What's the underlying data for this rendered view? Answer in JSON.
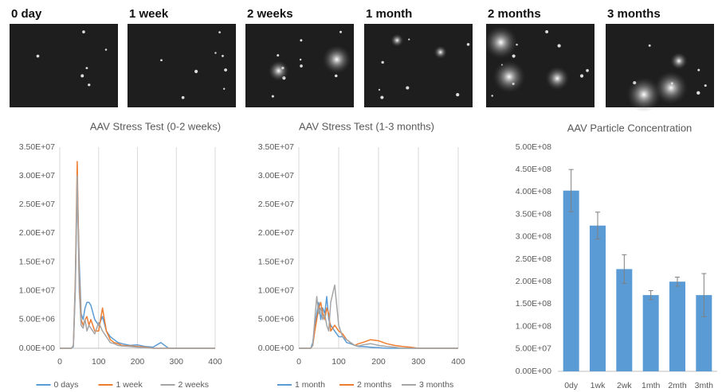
{
  "images": {
    "labels": [
      "0 day",
      "1 week",
      "2 weeks",
      "1 month",
      "2 months",
      "3 months"
    ]
  },
  "chart_data": [
    {
      "type": "line",
      "title": "AAV Stress Test (0-2 weeks)",
      "x": [
        0,
        20,
        30,
        35,
        40,
        45,
        50,
        55,
        60,
        65,
        70,
        75,
        80,
        90,
        100,
        110,
        120,
        130,
        140,
        150,
        160,
        180,
        200,
        220,
        240,
        260,
        280,
        300,
        350,
        400
      ],
      "series": [
        {
          "name": "0 days",
          "color": "#5b9bd5",
          "values": [
            0,
            0,
            0,
            300000,
            10000000,
            29000000,
            15000000,
            6000000,
            5000000,
            7000000,
            8000000,
            8000000,
            7500000,
            5000000,
            4000000,
            5500000,
            3000000,
            2000000,
            1500000,
            1000000,
            800000,
            500000,
            600000,
            300000,
            200000,
            1000000,
            0,
            0,
            0,
            0
          ]
        },
        {
          "name": "1 week",
          "color": "#ed7d31",
          "values": [
            0,
            0,
            0,
            500000,
            12000000,
            32500000,
            12000000,
            5000000,
            4000000,
            5000000,
            5500000,
            4000000,
            5000000,
            3000000,
            3000000,
            7000000,
            3000000,
            1500000,
            1000000,
            800000,
            500000,
            400000,
            300000,
            200000,
            0,
            0,
            0,
            0,
            0,
            0
          ]
        },
        {
          "name": "2 weeks",
          "color": "#a5a5a5",
          "values": [
            0,
            0,
            0,
            500000,
            11000000,
            30000000,
            10000000,
            4000000,
            3500000,
            5000000,
            3000000,
            4000000,
            3500000,
            2500000,
            4500000,
            3000000,
            2000000,
            1000000,
            800000,
            500000,
            400000,
            300000,
            200000,
            100000,
            0,
            0,
            0,
            0,
            0,
            0
          ]
        }
      ],
      "xlim": [
        0,
        400
      ],
      "xticks": [
        0,
        100,
        200,
        300,
        400
      ],
      "ylim": [
        0,
        35000000
      ],
      "yticks": [
        {
          "value": 0,
          "label": "0.00E+00"
        },
        {
          "value": 5000000,
          "label": "5.00E+06"
        },
        {
          "value": 10000000,
          "label": "1.00E+07"
        },
        {
          "value": 15000000,
          "label": "1.50E+07"
        },
        {
          "value": 20000000,
          "label": "2.00E+07"
        },
        {
          "value": 25000000,
          "label": "2.50E+07"
        },
        {
          "value": 30000000,
          "label": "3.00E+07"
        },
        {
          "value": 35000000,
          "label": "3.50E+07"
        }
      ],
      "grid": "x",
      "legend": "bottom"
    },
    {
      "type": "line",
      "title": "AAV Stress Test (1-3 months)",
      "x": [
        0,
        20,
        30,
        35,
        40,
        45,
        50,
        55,
        60,
        65,
        70,
        75,
        80,
        90,
        100,
        110,
        120,
        130,
        140,
        150,
        160,
        180,
        200,
        220,
        240,
        260,
        280,
        300,
        350,
        400
      ],
      "series": [
        {
          "name": "1 month",
          "color": "#5b9bd5",
          "values": [
            0,
            0,
            0,
            1000000,
            4000000,
            6000000,
            8000000,
            5000000,
            7000000,
            6000000,
            9000000,
            5000000,
            4000000,
            3000000,
            2000000,
            2000000,
            1000000,
            800000,
            500000,
            300000,
            300000,
            200000,
            100000,
            0,
            0,
            0,
            0,
            0,
            0,
            0
          ]
        },
        {
          "name": "2 months",
          "color": "#ed7d31",
          "values": [
            0,
            0,
            0,
            500000,
            3000000,
            5000000,
            7000000,
            8000000,
            6000000,
            5000000,
            7000000,
            6000000,
            3000000,
            4000000,
            3000000,
            2500000,
            1500000,
            1000000,
            500000,
            800000,
            1000000,
            1500000,
            1300000,
            800000,
            500000,
            300000,
            200000,
            0,
            0,
            0
          ]
        },
        {
          "name": "3 months",
          "color": "#a5a5a5",
          "values": [
            0,
            0,
            0,
            500000,
            5000000,
            9000000,
            6000000,
            7000000,
            5000000,
            6000000,
            4000000,
            3000000,
            8000000,
            11000000,
            4000000,
            2000000,
            1500000,
            1000000,
            500000,
            400000,
            600000,
            800000,
            500000,
            300000,
            200000,
            0,
            0,
            0,
            0,
            0
          ]
        }
      ],
      "xlim": [
        0,
        400
      ],
      "xticks": [
        0,
        100,
        200,
        300,
        400
      ],
      "ylim": [
        0,
        35000000
      ],
      "yticks": [
        {
          "value": 0,
          "label": "0.00E+00"
        },
        {
          "value": 5000000,
          "label": "5.00E+06"
        },
        {
          "value": 10000000,
          "label": "1.00E+07"
        },
        {
          "value": 15000000,
          "label": "1.50E+07"
        },
        {
          "value": 20000000,
          "label": "2.00E+07"
        },
        {
          "value": 25000000,
          "label": "2.50E+07"
        },
        {
          "value": 30000000,
          "label": "3.00E+07"
        },
        {
          "value": 35000000,
          "label": "3.50E+07"
        }
      ],
      "grid": "x",
      "legend": "bottom"
    },
    {
      "type": "bar",
      "title": "AAV Particle Concentration",
      "categories": [
        "0dy",
        "1wk",
        "2wk",
        "1mth",
        "2mth",
        "3mth"
      ],
      "values": [
        403000000,
        325000000,
        228000000,
        170000000,
        200000000,
        170000000
      ],
      "errors": [
        47000000,
        30000000,
        32000000,
        10000000,
        10000000,
        48000000
      ],
      "color": "#5b9bd5",
      "ylim": [
        0,
        500000000
      ],
      "yticks": [
        {
          "value": 0,
          "label": "0.00E+00"
        },
        {
          "value": 50000000,
          "label": "5.00E+07"
        },
        {
          "value": 100000000,
          "label": "1.00E+08"
        },
        {
          "value": 150000000,
          "label": "1.50E+08"
        },
        {
          "value": 200000000,
          "label": "2.00E+08"
        },
        {
          "value": 250000000,
          "label": "2.50E+08"
        },
        {
          "value": 300000000,
          "label": "3.00E+08"
        },
        {
          "value": 350000000,
          "label": "3.50E+08"
        },
        {
          "value": 400000000,
          "label": "4.00E+08"
        },
        {
          "value": 450000000,
          "label": "4.50E+08"
        },
        {
          "value": 500000000,
          "label": "5.00E+08"
        }
      ],
      "grid": "none"
    }
  ]
}
